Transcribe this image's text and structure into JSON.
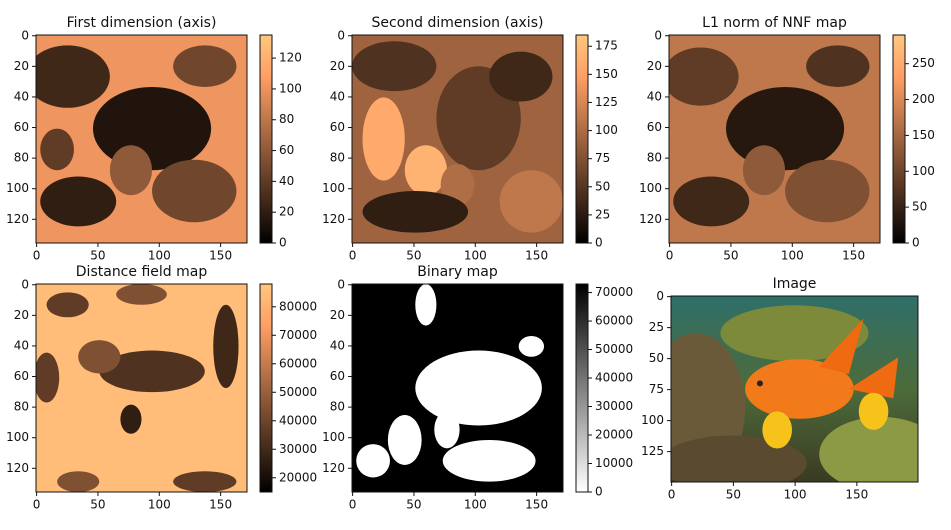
{
  "chart_data": [
    {
      "type": "heatmap",
      "title": "First dimension (axis)",
      "xlim": [
        -0.5,
        171.5
      ],
      "ylim": [
        135.5,
        -0.5
      ],
      "xticks": [
        0,
        50,
        100,
        150
      ],
      "yticks": [
        0,
        20,
        40,
        60,
        80,
        100,
        120
      ],
      "colormap": "copper",
      "clim": [
        0,
        135
      ],
      "cticks": [
        0,
        20,
        40,
        60,
        80,
        100,
        120
      ]
    },
    {
      "type": "heatmap",
      "title": "Second dimension (axis)",
      "xlim": [
        -0.5,
        171.5
      ],
      "ylim": [
        135.5,
        -0.5
      ],
      "xticks": [
        0,
        50,
        100,
        150
      ],
      "yticks": [
        0,
        20,
        40,
        60,
        80,
        100,
        120
      ],
      "colormap": "copper",
      "clim": [
        0,
        185
      ],
      "cticks": [
        0,
        25,
        50,
        75,
        100,
        125,
        150,
        175
      ]
    },
    {
      "type": "heatmap",
      "title": "L1 norm of NNF map",
      "xlim": [
        -0.5,
        171.5
      ],
      "ylim": [
        135.5,
        -0.5
      ],
      "xticks": [
        0,
        50,
        100,
        150
      ],
      "yticks": [
        0,
        20,
        40,
        60,
        80,
        100,
        120
      ],
      "colormap": "copper",
      "clim": [
        0,
        290
      ],
      "cticks": [
        0,
        50,
        100,
        150,
        200,
        250
      ]
    },
    {
      "type": "heatmap",
      "title": "Distance field map",
      "xlim": [
        -0.5,
        171.5
      ],
      "ylim": [
        135.5,
        -0.5
      ],
      "xticks": [
        0,
        50,
        100,
        150
      ],
      "yticks": [
        0,
        20,
        40,
        60,
        80,
        100,
        120
      ],
      "colormap": "copper",
      "clim": [
        15000,
        88000
      ],
      "cticks": [
        20000,
        30000,
        40000,
        50000,
        60000,
        70000,
        80000
      ]
    },
    {
      "type": "heatmap",
      "title": "Binary map",
      "xlim": [
        -0.5,
        171.5
      ],
      "ylim": [
        135.5,
        -0.5
      ],
      "xticks": [
        0,
        50,
        100,
        150
      ],
      "yticks": [
        0,
        20,
        40,
        60,
        80,
        100,
        120
      ],
      "colormap": "gray_r",
      "clim": [
        0,
        73000
      ],
      "cticks": [
        0,
        10000,
        20000,
        30000,
        40000,
        50000,
        60000,
        70000
      ]
    },
    {
      "type": "image",
      "title": "Image",
      "xlim": [
        -0.5,
        199.5
      ],
      "ylim": [
        149.5,
        -0.5
      ],
      "xticks": [
        0,
        50,
        100,
        150
      ],
      "yticks": [
        0,
        25,
        50,
        75,
        100,
        125
      ]
    }
  ]
}
